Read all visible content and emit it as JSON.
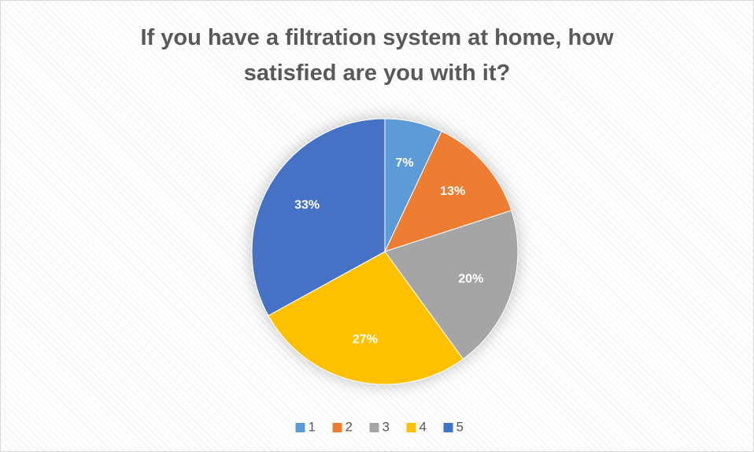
{
  "chart_data": {
    "type": "pie",
    "title": "If you have a filtration system at home, how satisfied are you with it?",
    "categories": [
      "1",
      "2",
      "3",
      "4",
      "5"
    ],
    "values": [
      7,
      13,
      20,
      27,
      33
    ],
    "value_labels": [
      "7%",
      "13%",
      "20%",
      "27%",
      "33%"
    ],
    "colors": [
      "#5b9bd5",
      "#ed7d31",
      "#a5a5a5",
      "#ffc000",
      "#4472c4"
    ],
    "legend": "bottom"
  }
}
